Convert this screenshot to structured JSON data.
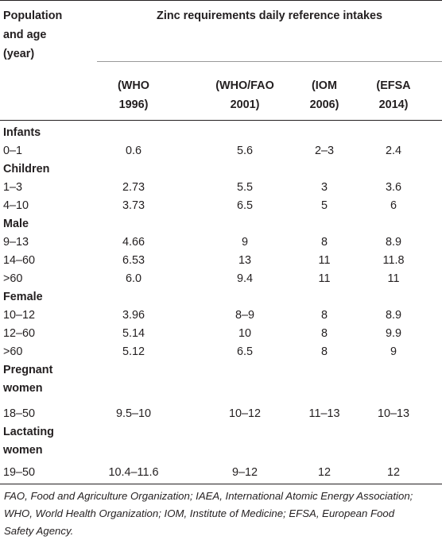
{
  "table": {
    "corner_header": [
      "Population",
      "and age",
      "(year)"
    ],
    "span_header": "Zinc requirements daily reference intakes",
    "columns": [
      [
        "(WHO",
        "1996)"
      ],
      [
        "(WHO/FAO",
        "2001)"
      ],
      [
        "(IOM",
        "2006)"
      ],
      [
        "(EFSA",
        "2014)"
      ]
    ],
    "groups": [
      {
        "title": [
          "Infants"
        ],
        "rows": [
          {
            "age": "0–1",
            "values": [
              "0.6",
              "5.6",
              "2–3",
              "2.4"
            ]
          }
        ]
      },
      {
        "title": [
          "Children"
        ],
        "rows": [
          {
            "age": "1–3",
            "values": [
              "2.73",
              "5.5",
              "3",
              "3.6"
            ]
          },
          {
            "age": "4–10",
            "values": [
              "3.73",
              "6.5",
              "5",
              "6"
            ]
          }
        ]
      },
      {
        "title": [
          "Male"
        ],
        "rows": [
          {
            "age": "9–13",
            "values": [
              "4.66",
              "9",
              "8",
              "8.9"
            ]
          },
          {
            "age": "14–60",
            "values": [
              "6.53",
              "13",
              "11",
              "11.8"
            ]
          },
          {
            "age": ">60",
            "values": [
              "6.0",
              "9.4",
              "11",
              "11"
            ]
          }
        ]
      },
      {
        "title": [
          "Female"
        ],
        "rows": [
          {
            "age": "10–12",
            "values": [
              "3.96",
              "8–9",
              "8",
              "8.9"
            ]
          },
          {
            "age": "12–60",
            "values": [
              "5.14",
              "10",
              "8",
              "9.9"
            ]
          },
          {
            "age": ">60",
            "values": [
              "5.12",
              "6.5",
              "8",
              "9"
            ]
          }
        ]
      },
      {
        "title": [
          "Pregnant",
          "women"
        ],
        "rows": [
          {
            "age": "18–50",
            "values": [
              "9.5–10",
              "10–12",
              "11–13",
              "10–13"
            ]
          }
        ]
      },
      {
        "title": [
          "Lactating",
          "women"
        ],
        "rows": [
          {
            "age": "19–50",
            "values": [
              "10.4–11.6",
              "9–12",
              "12",
              "12"
            ]
          }
        ]
      }
    ]
  },
  "footnote": [
    "FAO, Food and Agriculture Organization; IAEA, International Atomic Energy Association;",
    "WHO, World Health Organization; IOM, Institute of Medicine; EFSA, European Food",
    "Safety Agency."
  ]
}
